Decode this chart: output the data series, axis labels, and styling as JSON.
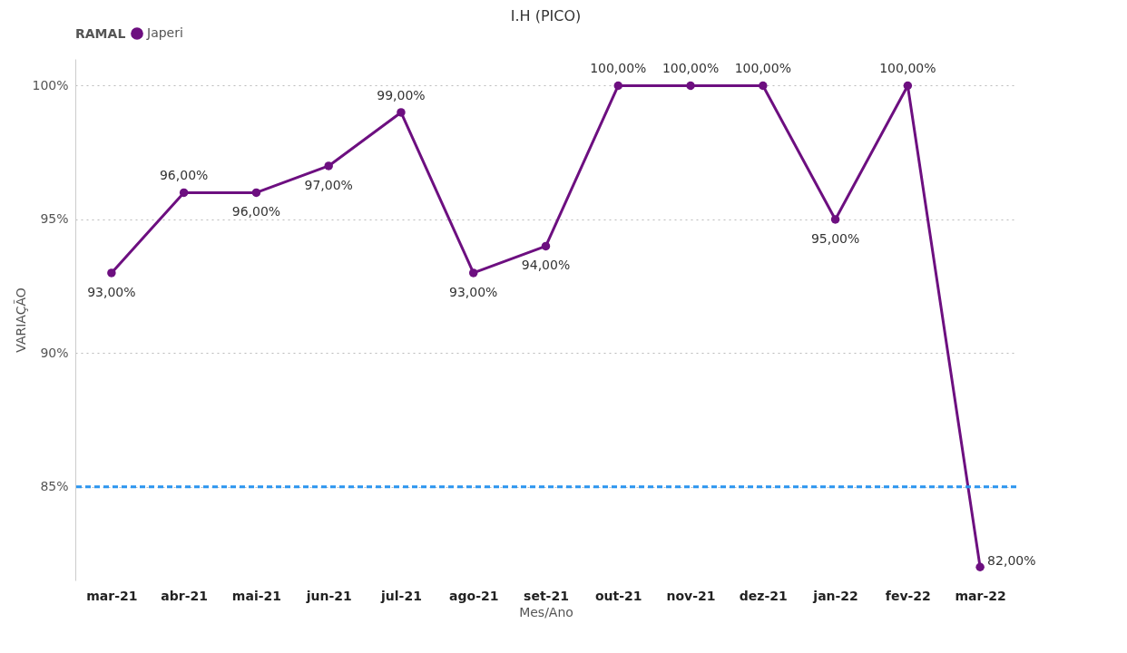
{
  "chart_data": {
    "type": "line",
    "title": "I.H (PICO)",
    "xlabel": "Mes/Ano",
    "ylabel": "VARIAÇÃO",
    "legend_title": "RAMAL",
    "legend": "top left",
    "grid": "y",
    "marker": "circle",
    "line_style": "solid",
    "categories": [
      "mar-21",
      "abr-21",
      "mai-21",
      "jun-21",
      "jul-21",
      "ago-21",
      "set-21",
      "out-21",
      "nov-21",
      "dez-21",
      "jan-22",
      "fev-22",
      "mar-22"
    ],
    "series": [
      {
        "name": "Japeri",
        "color": "#6d0f80",
        "values": [
          93,
          96,
          96,
          97,
          99,
          93,
          94,
          100,
          100,
          100,
          95,
          100,
          82
        ],
        "value_labels": [
          "93,00%",
          "96,00%",
          "96,00%",
          "97,00%",
          "99,00%",
          "93,00%",
          "94,00%",
          "100,00%",
          "100,00%",
          "100,00%",
          "95,00%",
          "100,00%",
          "82,00%"
        ]
      }
    ],
    "ylim": [
      81.5,
      101
    ],
    "yticks": [
      {
        "value": 85,
        "label": "85%"
      },
      {
        "value": 90,
        "label": "90%"
      },
      {
        "value": 95,
        "label": "95%"
      },
      {
        "value": 100,
        "label": "100%"
      }
    ],
    "ref_lines": [
      {
        "axis": "y",
        "value": 85,
        "color": "#2b95ef",
        "line_style": "dashed"
      }
    ]
  }
}
